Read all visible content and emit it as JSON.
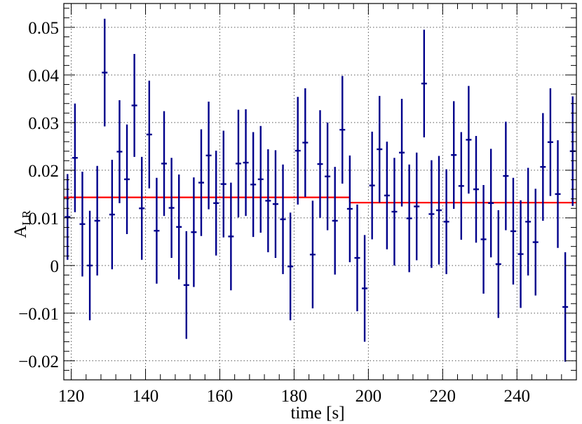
{
  "chart_data": {
    "type": "scatter",
    "title": "",
    "xlabel": "time [s]",
    "ylabel_main": "A",
    "ylabel_sub": "LR",
    "xlim": [
      118,
      256
    ],
    "ylim": [
      -0.024,
      0.055
    ],
    "xticks": [
      120,
      140,
      160,
      180,
      200,
      220,
      240
    ],
    "xtick_labels": [
      "120",
      "140",
      "160",
      "180",
      "200",
      "220",
      "240"
    ],
    "yticks": [
      -0.02,
      -0.01,
      0,
      0.01,
      0.02,
      0.03,
      0.04,
      0.05
    ],
    "ytick_labels": [
      "−0.02",
      "−0.01",
      "0",
      "0.01",
      "0.02",
      "0.03",
      "0.04",
      "0.05"
    ],
    "grid": true,
    "series_color": "#00008b",
    "fit_color": "#ff0000",
    "points": [
      {
        "x": 119,
        "y": 0.0102,
        "err": 0.009
      },
      {
        "x": 121,
        "y": 0.0226,
        "err": 0.0114
      },
      {
        "x": 123,
        "y": 0.0087,
        "err": 0.011
      },
      {
        "x": 125,
        "y": 0.0,
        "err": 0.0115
      },
      {
        "x": 127,
        "y": 0.0094,
        "err": 0.0115
      },
      {
        "x": 129,
        "y": 0.0405,
        "err": 0.0113
      },
      {
        "x": 131,
        "y": 0.0107,
        "err": 0.0115
      },
      {
        "x": 133,
        "y": 0.0239,
        "err": 0.0108
      },
      {
        "x": 135,
        "y": 0.0181,
        "err": 0.0115
      },
      {
        "x": 137,
        "y": 0.0336,
        "err": 0.0108
      },
      {
        "x": 139,
        "y": 0.012,
        "err": 0.0108
      },
      {
        "x": 141,
        "y": 0.0275,
        "err": 0.0113
      },
      {
        "x": 143,
        "y": 0.0073,
        "err": 0.0111
      },
      {
        "x": 145,
        "y": 0.0214,
        "err": 0.011
      },
      {
        "x": 147,
        "y": 0.0121,
        "err": 0.0105
      },
      {
        "x": 149,
        "y": 0.0081,
        "err": 0.011
      },
      {
        "x": 151,
        "y": -0.0041,
        "err": 0.0113
      },
      {
        "x": 153,
        "y": 0.007,
        "err": 0.0115
      },
      {
        "x": 155,
        "y": 0.0174,
        "err": 0.0112
      },
      {
        "x": 157,
        "y": 0.0231,
        "err": 0.0113
      },
      {
        "x": 159,
        "y": 0.0131,
        "err": 0.011
      },
      {
        "x": 161,
        "y": 0.0171,
        "err": 0.0112
      },
      {
        "x": 163,
        "y": 0.0061,
        "err": 0.0113
      },
      {
        "x": 165,
        "y": 0.0214,
        "err": 0.0113
      },
      {
        "x": 167,
        "y": 0.0216,
        "err": 0.0112
      },
      {
        "x": 169,
        "y": 0.017,
        "err": 0.011
      },
      {
        "x": 171,
        "y": 0.0181,
        "err": 0.0112
      },
      {
        "x": 173,
        "y": 0.0136,
        "err": 0.0108
      },
      {
        "x": 175,
        "y": 0.0129,
        "err": 0.0113
      },
      {
        "x": 177,
        "y": 0.0097,
        "err": 0.0115
      },
      {
        "x": 179,
        "y": -0.0002,
        "err": 0.0113
      },
      {
        "x": 181,
        "y": 0.0241,
        "err": 0.0113
      },
      {
        "x": 183,
        "y": 0.0258,
        "err": 0.0114
      },
      {
        "x": 185,
        "y": 0.0023,
        "err": 0.0113
      },
      {
        "x": 187,
        "y": 0.0213,
        "err": 0.0113
      },
      {
        "x": 189,
        "y": 0.0187,
        "err": 0.0113
      },
      {
        "x": 191,
        "y": 0.0094,
        "err": 0.0113
      },
      {
        "x": 193,
        "y": 0.0285,
        "err": 0.0113
      },
      {
        "x": 195,
        "y": 0.0119,
        "err": 0.0112
      },
      {
        "x": 197,
        "y": 0.0016,
        "err": 0.0112
      },
      {
        "x": 199,
        "y": -0.0048,
        "err": 0.0112
      },
      {
        "x": 201,
        "y": 0.0168,
        "err": 0.0113
      },
      {
        "x": 203,
        "y": 0.0244,
        "err": 0.0112
      },
      {
        "x": 205,
        "y": 0.0147,
        "err": 0.0113
      },
      {
        "x": 207,
        "y": 0.0113,
        "err": 0.0113
      },
      {
        "x": 209,
        "y": 0.0237,
        "err": 0.0113
      },
      {
        "x": 211,
        "y": 0.0099,
        "err": 0.0113
      },
      {
        "x": 213,
        "y": 0.0124,
        "err": 0.0113
      },
      {
        "x": 215,
        "y": 0.0382,
        "err": 0.0113
      },
      {
        "x": 217,
        "y": 0.0108,
        "err": 0.0113
      },
      {
        "x": 219,
        "y": 0.0116,
        "err": 0.0114
      },
      {
        "x": 221,
        "y": 0.0092,
        "err": 0.011
      },
      {
        "x": 223,
        "y": 0.0232,
        "err": 0.0113
      },
      {
        "x": 225,
        "y": 0.0167,
        "err": 0.0113
      },
      {
        "x": 227,
        "y": 0.0264,
        "err": 0.0113
      },
      {
        "x": 229,
        "y": 0.016,
        "err": 0.0112
      },
      {
        "x": 231,
        "y": 0.0055,
        "err": 0.0114
      },
      {
        "x": 233,
        "y": 0.0131,
        "err": 0.0114
      },
      {
        "x": 235,
        "y": 0.0003,
        "err": 0.0113
      },
      {
        "x": 237,
        "y": 0.0188,
        "err": 0.0114
      },
      {
        "x": 239,
        "y": 0.0072,
        "err": 0.0112
      },
      {
        "x": 241,
        "y": 0.0024,
        "err": 0.0113
      },
      {
        "x": 243,
        "y": 0.0092,
        "err": 0.0113
      },
      {
        "x": 245,
        "y": 0.0049,
        "err": 0.0112
      },
      {
        "x": 247,
        "y": 0.0207,
        "err": 0.0113
      },
      {
        "x": 249,
        "y": 0.0259,
        "err": 0.0113
      },
      {
        "x": 251,
        "y": 0.015,
        "err": 0.0113
      },
      {
        "x": 253,
        "y": -0.0087,
        "err": 0.0115
      },
      {
        "x": 255,
        "y": 0.024,
        "err": 0.0115
      }
    ],
    "fit_segments": [
      {
        "x_start": 118,
        "x_end": 195,
        "y": 0.0143
      },
      {
        "x_start": 195,
        "x_end": 256,
        "y": 0.0132
      }
    ]
  }
}
